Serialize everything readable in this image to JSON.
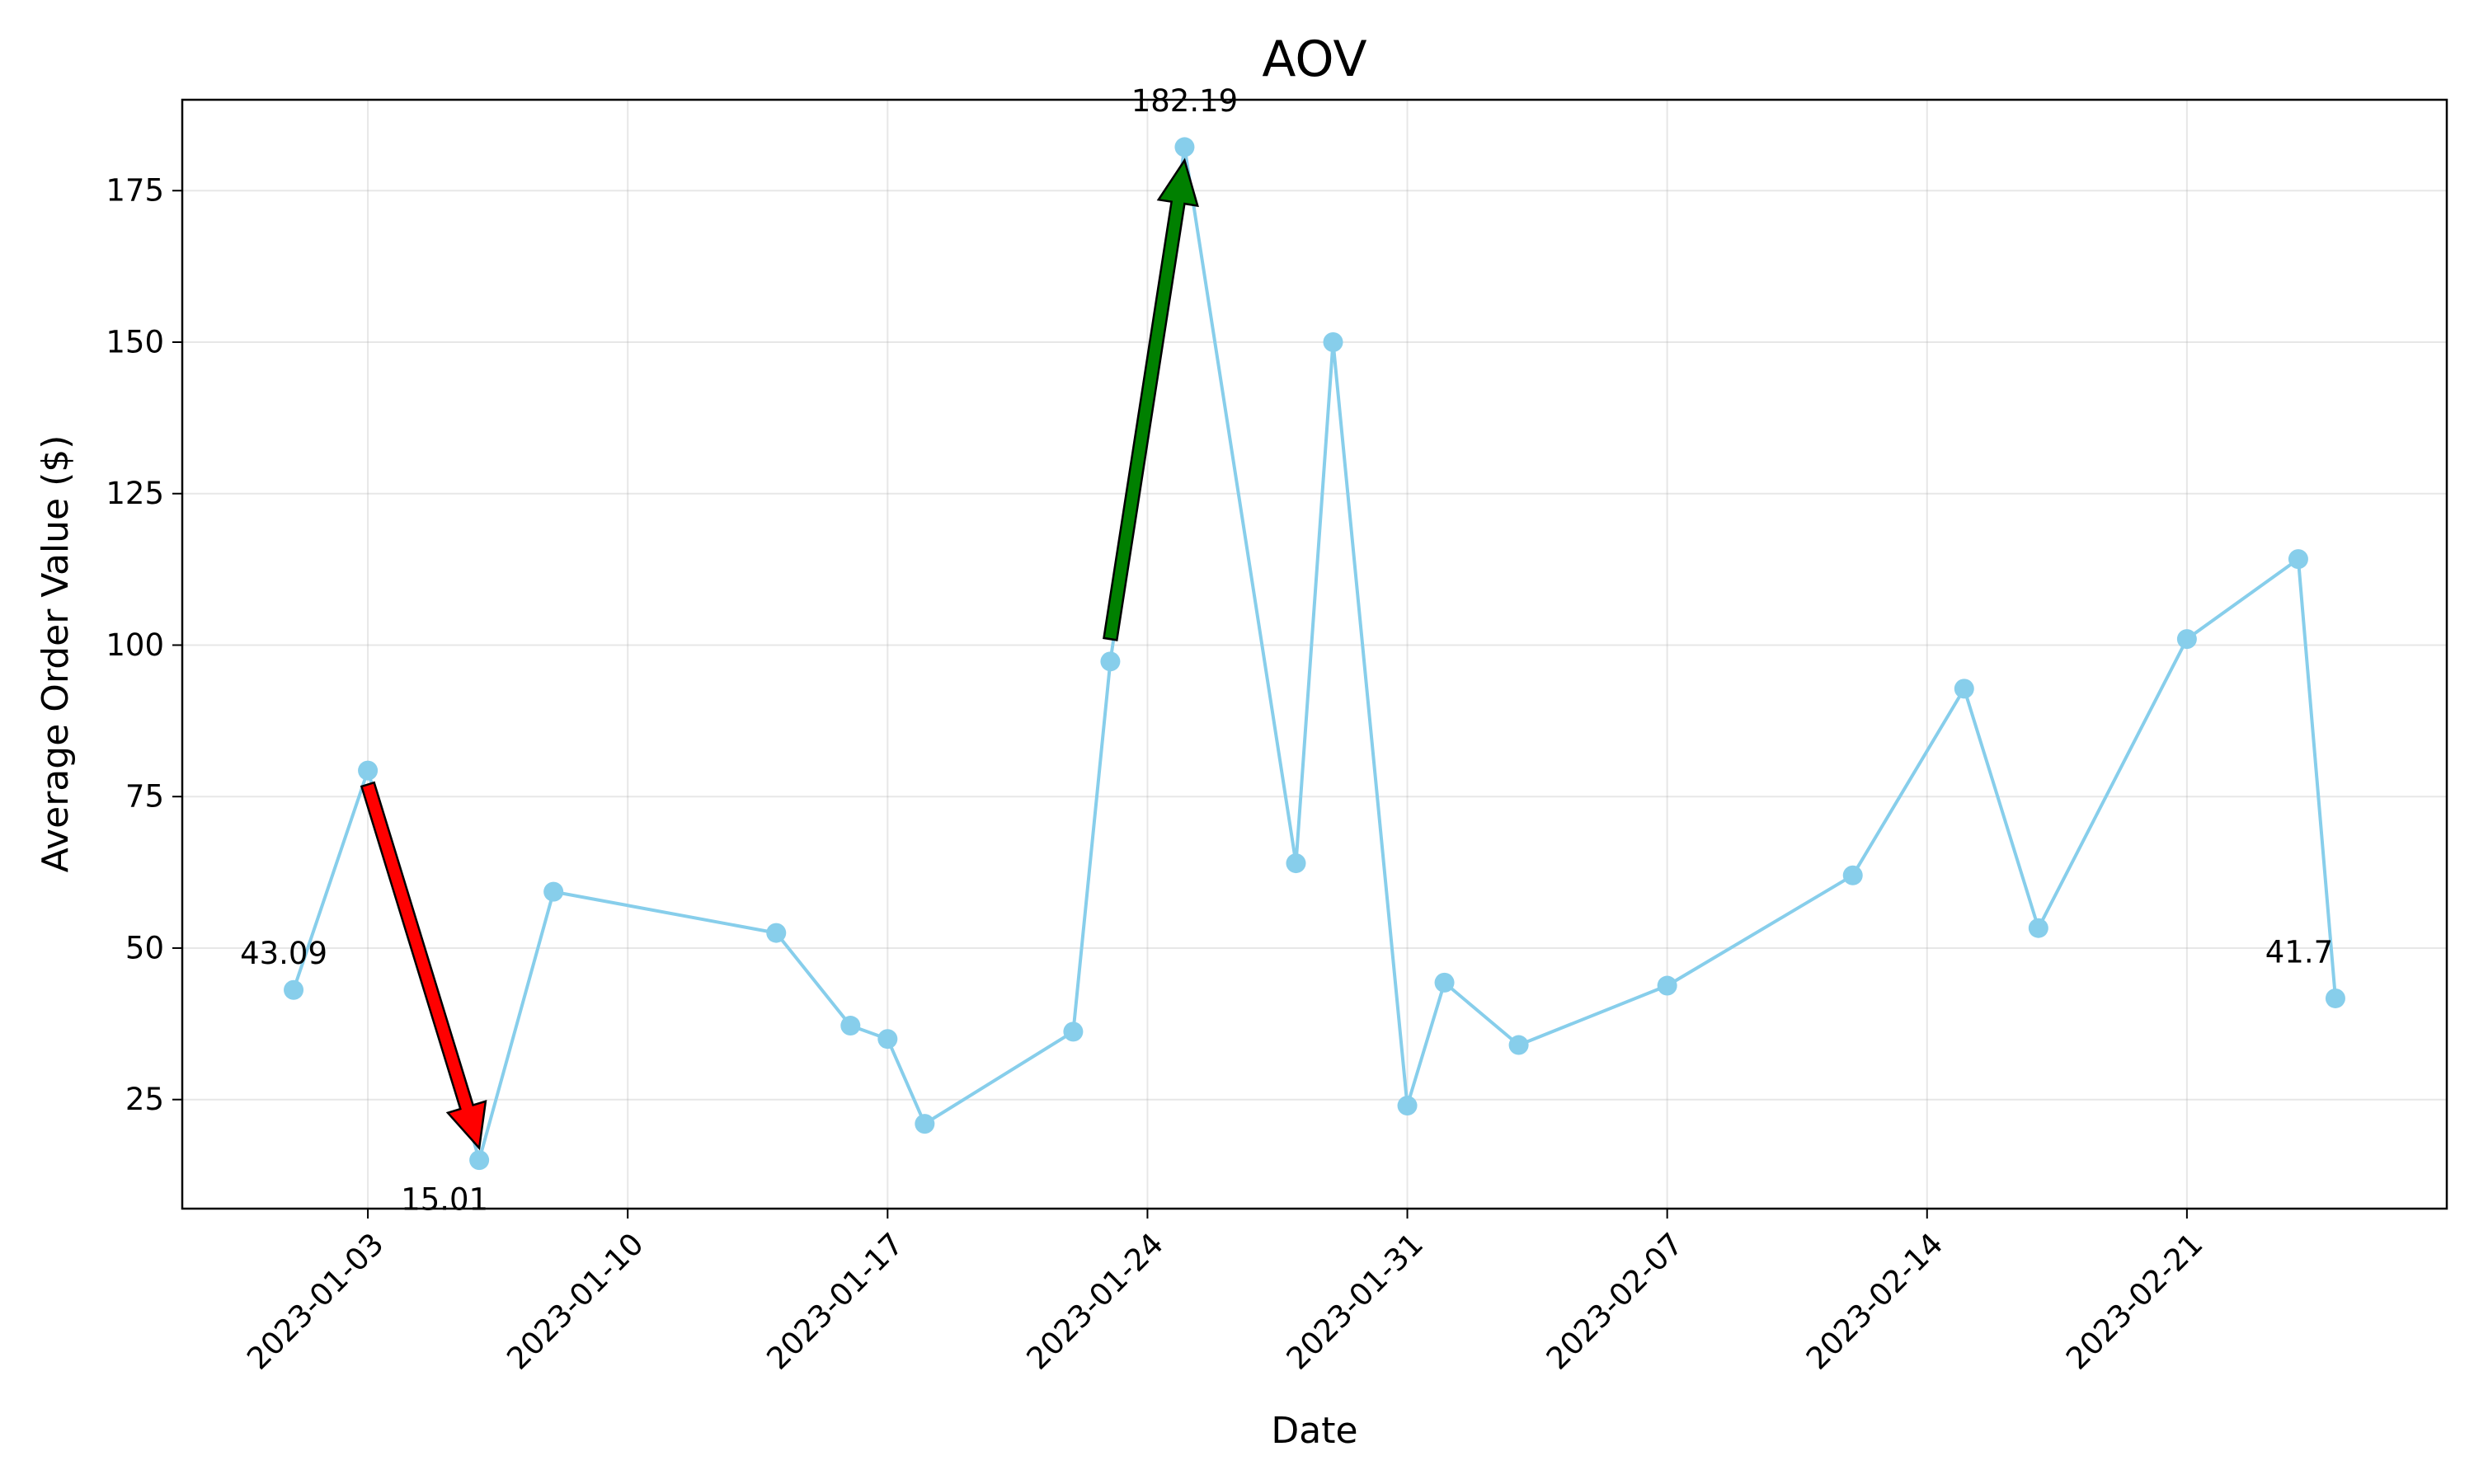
{
  "chart_data": {
    "type": "line",
    "title": "AOV",
    "xlabel": "Date",
    "ylabel": "Average Order Value ($)",
    "x_ticks": [
      "2023-01-03",
      "2023-01-10",
      "2023-01-17",
      "2023-01-24",
      "2023-01-31",
      "2023-02-07",
      "2023-02-14",
      "2023-02-21"
    ],
    "y_ticks": [
      25,
      50,
      75,
      100,
      125,
      150,
      175
    ],
    "xlim": [
      "2022-12-29",
      "2023-02-28"
    ],
    "ylim": [
      7,
      190
    ],
    "grid": true,
    "line_color": "#87CEEB",
    "series": [
      {
        "points": [
          {
            "x": "2023-01-01",
            "y": 43.09
          },
          {
            "x": "2023-01-03",
            "y": 79.3
          },
          {
            "x": "2023-01-06",
            "y": 15.01
          },
          {
            "x": "2023-01-08",
            "y": 59.3
          },
          {
            "x": "2023-01-14",
            "y": 52.5
          },
          {
            "x": "2023-01-16",
            "y": 37.2
          },
          {
            "x": "2023-01-17",
            "y": 35.0
          },
          {
            "x": "2023-01-18",
            "y": 21.0
          },
          {
            "x": "2023-01-22",
            "y": 36.2
          },
          {
            "x": "2023-01-23",
            "y": 97.3
          },
          {
            "x": "2023-01-25",
            "y": 182.19
          },
          {
            "x": "2023-01-28",
            "y": 64.0
          },
          {
            "x": "2023-01-29",
            "y": 150.0
          },
          {
            "x": "2023-01-31",
            "y": 24.0
          },
          {
            "x": "2023-02-01",
            "y": 44.3
          },
          {
            "x": "2023-02-03",
            "y": 34.0
          },
          {
            "x": "2023-02-07",
            "y": 43.8
          },
          {
            "x": "2023-02-12",
            "y": 62.0
          },
          {
            "x": "2023-02-15",
            "y": 92.8
          },
          {
            "x": "2023-02-17",
            "y": 53.3
          },
          {
            "x": "2023-02-21",
            "y": 101.0
          },
          {
            "x": "2023-02-24",
            "y": 114.2
          },
          {
            "x": "2023-02-25",
            "y": 41.7
          }
        ]
      }
    ],
    "annotations": [
      {
        "text": "43.09",
        "x": "2023-01-01",
        "y": 43.09
      },
      {
        "text": "15.01",
        "x": "2023-01-06",
        "y": 15.01
      },
      {
        "text": "182.19",
        "x": "2023-01-25",
        "y": 182.19
      },
      {
        "text": "41.7",
        "x": "2023-02-25",
        "y": 41.7
      }
    ],
    "arrows": [
      {
        "from": {
          "x": "2023-01-03",
          "y": 77
        },
        "to": {
          "x": "2023-01-06",
          "y": 17
        },
        "color": "#ff0000"
      },
      {
        "from": {
          "x": "2023-01-23",
          "y": 101
        },
        "to": {
          "x": "2023-01-25",
          "y": 180
        },
        "color": "#008000"
      }
    ]
  }
}
